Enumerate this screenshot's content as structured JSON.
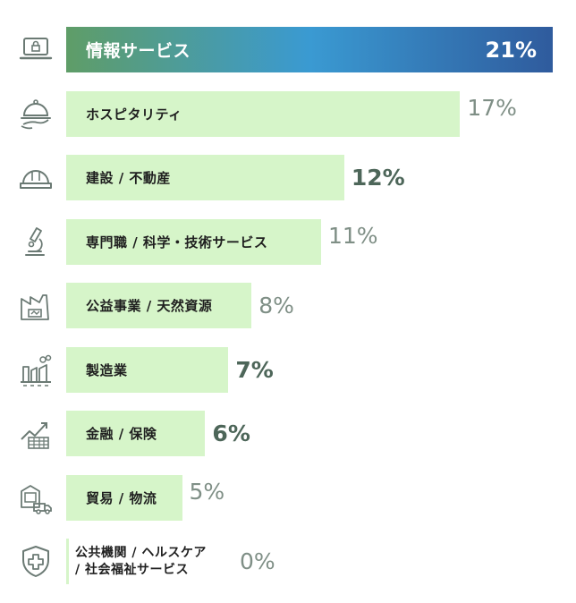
{
  "chart_data": {
    "type": "bar",
    "orientation": "horizontal",
    "categories": [
      "情報サービス",
      "ホスピタリティ",
      "建設 / 不動産",
      "専門職 / 科学・技術サービス",
      "公益事業 / 天然資源",
      "製造業",
      "金融 / 保険",
      "貿易 / 物流",
      "公共機関 / ヘルスケア / 社会福祉サービス"
    ],
    "values": [
      21,
      17,
      12,
      11,
      8,
      7,
      6,
      5,
      0
    ],
    "value_labels": [
      "21%",
      "17%",
      "12%",
      "11%",
      "8%",
      "7%",
      "6%",
      "5%",
      "0%"
    ],
    "label_lines": [
      [
        "情報サービス"
      ],
      [
        "ホスピタリティ"
      ],
      [
        "建設 / 不動産"
      ],
      [
        "専門職 / 科学・技術サービス"
      ],
      [
        "公益事業 / 天然資源"
      ],
      [
        "製造業"
      ],
      [
        "金融 / 保険"
      ],
      [
        "貿易 / 物流"
      ],
      [
        "公共機関 / ヘルスケア",
        "/ 社会福祉サービス"
      ]
    ],
    "value_styles": [
      "top",
      "light",
      "bold",
      "light",
      "light",
      "bold",
      "bold",
      "light",
      "light"
    ],
    "icons": [
      "laptop-lock-icon",
      "service-cloche-icon",
      "hard-hat-icon",
      "microscope-icon",
      "utility-plant-icon",
      "factory-icon",
      "finance-growth-icon",
      "delivery-truck-icon",
      "health-shield-icon"
    ],
    "xlim": [
      0,
      21
    ],
    "title": "",
    "xlabel": "",
    "ylabel": "",
    "grid": false,
    "colors": {
      "bar": "#d6f5c9",
      "top_bar_gradient": [
        "#5f9d67",
        "#3a9ad2",
        "#2f5b9d"
      ],
      "icon_stroke": "#6b7a74"
    }
  }
}
